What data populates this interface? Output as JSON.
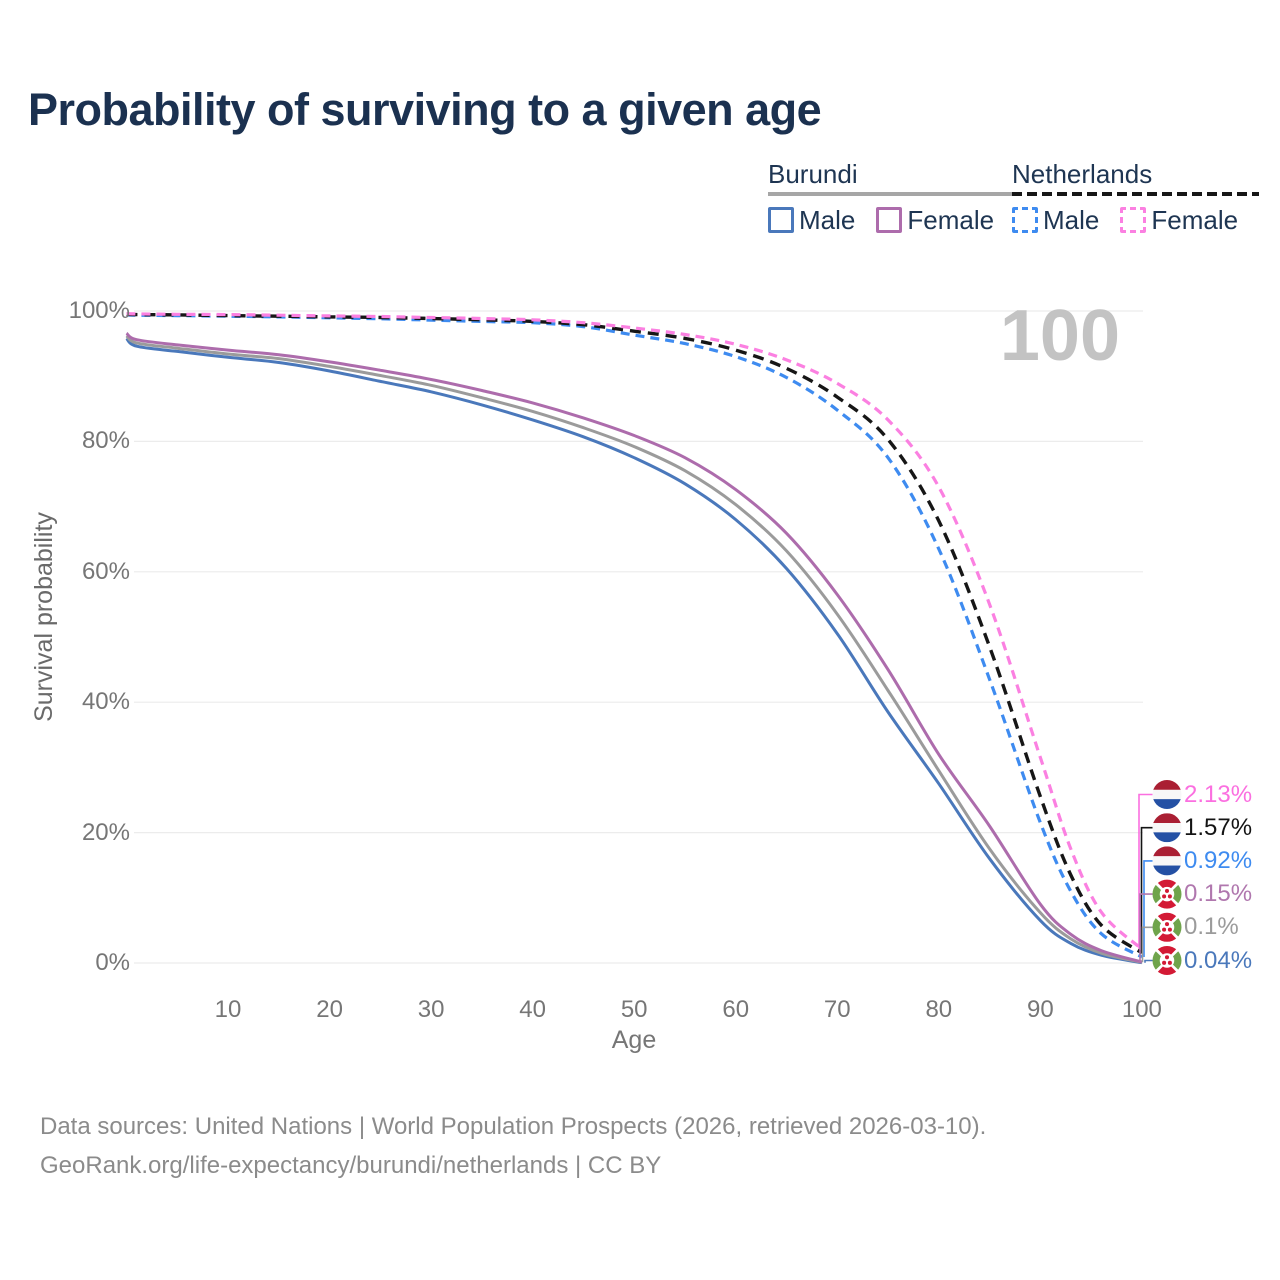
{
  "title": "Probability of surviving to a given age",
  "legend": {
    "groups": [
      {
        "name": "Burundi",
        "line_style": "solid",
        "line_color": "#a6a6a6",
        "items": [
          {
            "label": "Male",
            "color": "#4a78bb",
            "dashed": false
          },
          {
            "label": "Female",
            "color": "#ad6cac",
            "dashed": false
          }
        ]
      },
      {
        "name": "Netherlands",
        "line_style": "dashed",
        "line_color": "#161616",
        "items": [
          {
            "label": "Male",
            "color": "#3e8bf0",
            "dashed": true
          },
          {
            "label": "Female",
            "color": "#fb80e1",
            "dashed": true
          }
        ]
      }
    ]
  },
  "chart_data": {
    "type": "line",
    "title": "Probability of surviving to a given age",
    "xlabel": "Age",
    "ylabel": "Survival probability",
    "xlim": [
      0,
      100
    ],
    "ylim": [
      0,
      100
    ],
    "grid": "horizontal",
    "x_ticks": [
      10,
      20,
      30,
      40,
      50,
      60,
      70,
      80,
      90,
      100
    ],
    "y_ticks": [
      {
        "value": 0,
        "label": "0%"
      },
      {
        "value": 20,
        "label": "20%"
      },
      {
        "value": 40,
        "label": "40%"
      },
      {
        "value": 60,
        "label": "60%"
      },
      {
        "value": 80,
        "label": "80%"
      },
      {
        "value": 100,
        "label": "100%"
      }
    ],
    "age_annotation": "100",
    "ages": [
      0,
      1,
      5,
      10,
      15,
      20,
      25,
      30,
      35,
      40,
      45,
      50,
      55,
      60,
      65,
      70,
      75,
      80,
      85,
      90,
      93,
      96,
      100
    ],
    "series": [
      {
        "name": "Burundi Male",
        "country": "Burundi",
        "sex": "male",
        "style": "solid",
        "color": "#4a78bb",
        "width": 3,
        "values": [
          95.8,
          94.6,
          93.8,
          92.9,
          92.1,
          90.8,
          89.2,
          87.6,
          85.6,
          83.3,
          80.7,
          77.5,
          73.5,
          68.0,
          60.5,
          50.5,
          38.5,
          27.5,
          16.0,
          6.5,
          3.0,
          1.2,
          0.04
        ]
      },
      {
        "name": "Burundi Both sexes",
        "country": "Burundi",
        "sex": "both",
        "style": "solid",
        "color": "#9b9b9b",
        "width": 3,
        "values": [
          96.2,
          95.1,
          94.3,
          93.4,
          92.7,
          91.5,
          90.1,
          88.6,
          86.7,
          84.6,
          82.1,
          79.2,
          75.5,
          70.3,
          63.2,
          53.5,
          41.8,
          29.5,
          17.5,
          7.7,
          3.7,
          1.5,
          0.1
        ]
      },
      {
        "name": "Burundi Female",
        "country": "Burundi",
        "sex": "female",
        "style": "solid",
        "color": "#ad6cac",
        "width": 3,
        "values": [
          96.6,
          95.6,
          94.8,
          94.0,
          93.3,
          92.2,
          90.9,
          89.5,
          87.8,
          85.9,
          83.6,
          80.9,
          77.5,
          72.6,
          65.9,
          56.5,
          45.0,
          32.0,
          21.0,
          9.0,
          4.4,
          1.9,
          0.15
        ]
      },
      {
        "name": "Netherlands Male",
        "country": "Netherlands",
        "sex": "male",
        "style": "dashed",
        "color": "#3e8bf0",
        "width": 3.2,
        "values": [
          99.4,
          99.35,
          99.3,
          99.2,
          99.1,
          98.95,
          98.8,
          98.6,
          98.4,
          98.2,
          97.6,
          96.3,
          95.0,
          93.0,
          89.8,
          84.8,
          77.5,
          63.5,
          43.5,
          21.5,
          11.0,
          4.5,
          0.92
        ]
      },
      {
        "name": "Netherlands Both sexes",
        "country": "Netherlands",
        "sex": "both",
        "style": "dashed",
        "color": "#161616",
        "width": 3.4,
        "values": [
          99.5,
          99.45,
          99.4,
          99.3,
          99.2,
          99.1,
          99.0,
          98.85,
          98.65,
          98.4,
          97.9,
          96.9,
          95.8,
          94.0,
          91.2,
          86.8,
          80.3,
          67.8,
          48.5,
          25.5,
          13.5,
          5.8,
          1.57
        ]
      },
      {
        "name": "Netherlands Female",
        "country": "Netherlands",
        "sex": "female",
        "style": "dashed",
        "color": "#fb80e1",
        "width": 3.2,
        "values": [
          99.6,
          99.55,
          99.5,
          99.45,
          99.35,
          99.25,
          99.15,
          99.0,
          98.85,
          98.65,
          98.2,
          97.4,
          96.4,
          94.9,
          92.5,
          88.9,
          83.3,
          73.0,
          55.0,
          31.5,
          17.5,
          7.8,
          2.13
        ]
      }
    ],
    "end_labels": [
      {
        "value": "2.13%",
        "color": "#fb6fe0",
        "flag": "netherlands",
        "series": 5
      },
      {
        "value": "1.57%",
        "color": "#141414",
        "flag": "netherlands",
        "series": 4
      },
      {
        "value": "0.92%",
        "color": "#3e8bf0",
        "flag": "netherlands",
        "series": 3
      },
      {
        "value": "0.15%",
        "color": "#b077ae",
        "flag": "burundi",
        "series": 2
      },
      {
        "value": "0.1%",
        "color": "#9b9b9b",
        "flag": "burundi",
        "series": 1
      },
      {
        "value": "0.04%",
        "color": "#4a78bb",
        "flag": "burundi",
        "series": 0
      }
    ],
    "flag_colors": {
      "netherlands": {
        "red": "#AA1F33",
        "white": "#f7f7f7",
        "blue": "#2450a4"
      },
      "burundi": {
        "red": "#d31a35",
        "green": "#6fa44b",
        "white": "#ffffff"
      }
    }
  },
  "footer": {
    "line1": "Data sources: United Nations | World Population Prospects (2026, retrieved 2026-03-10).",
    "line2": "GeoRank.org/life-expectancy/burundi/netherlands | CC BY"
  }
}
